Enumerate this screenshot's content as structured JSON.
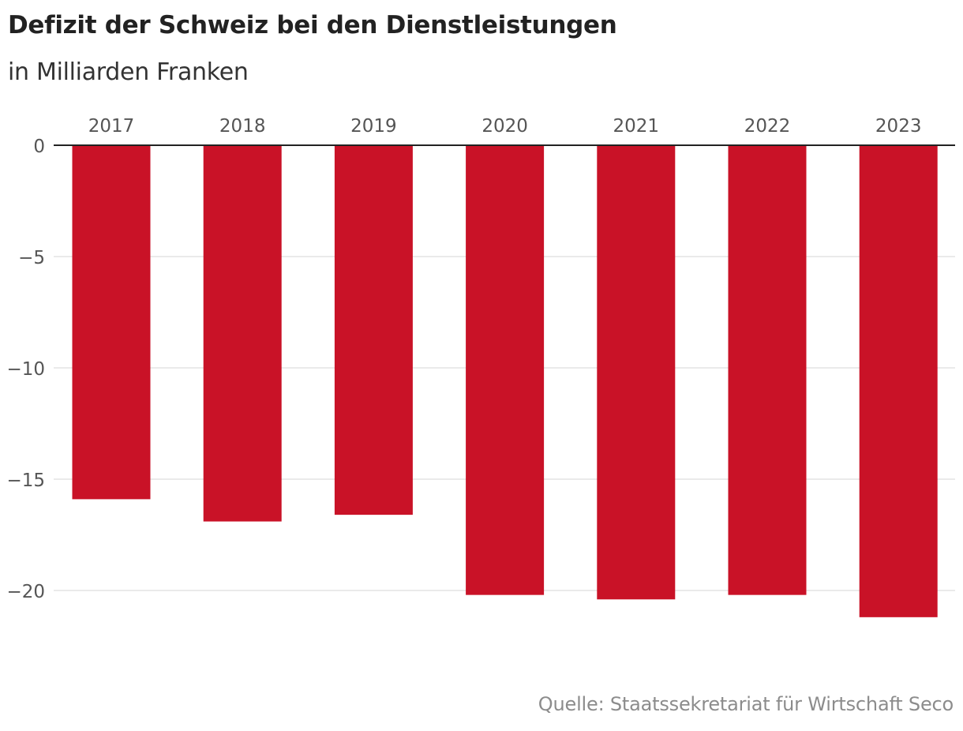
{
  "title": "Defizit der Schweiz bei den Dienstleistungen",
  "subtitle": "in Milliarden Franken",
  "source": "Quelle: Staatssekretariat für Wirtschaft Seco",
  "colors": {
    "bar": "#c91227",
    "gridline": "#e3e3e3",
    "baseline": "#222222",
    "tick_text": "#555555"
  },
  "chart_data": {
    "type": "bar",
    "title": "Defizit der Schweiz bei den Dienstleistungen",
    "subtitle": "in Milliarden Franken",
    "categories": [
      "2017",
      "2018",
      "2019",
      "2020",
      "2021",
      "2022",
      "2023"
    ],
    "values": [
      -15.9,
      -16.9,
      -16.6,
      -20.2,
      -20.4,
      -20.2,
      -21.2
    ],
    "xlabel": "",
    "ylabel": "",
    "ylim": [
      -22,
      0
    ],
    "yticks": [
      0,
      -5,
      -10,
      -15,
      -20
    ],
    "ytick_labels": [
      "0",
      "−5",
      "−10",
      "−15",
      "−20"
    ],
    "grid": true,
    "category_axis_position": "top"
  }
}
